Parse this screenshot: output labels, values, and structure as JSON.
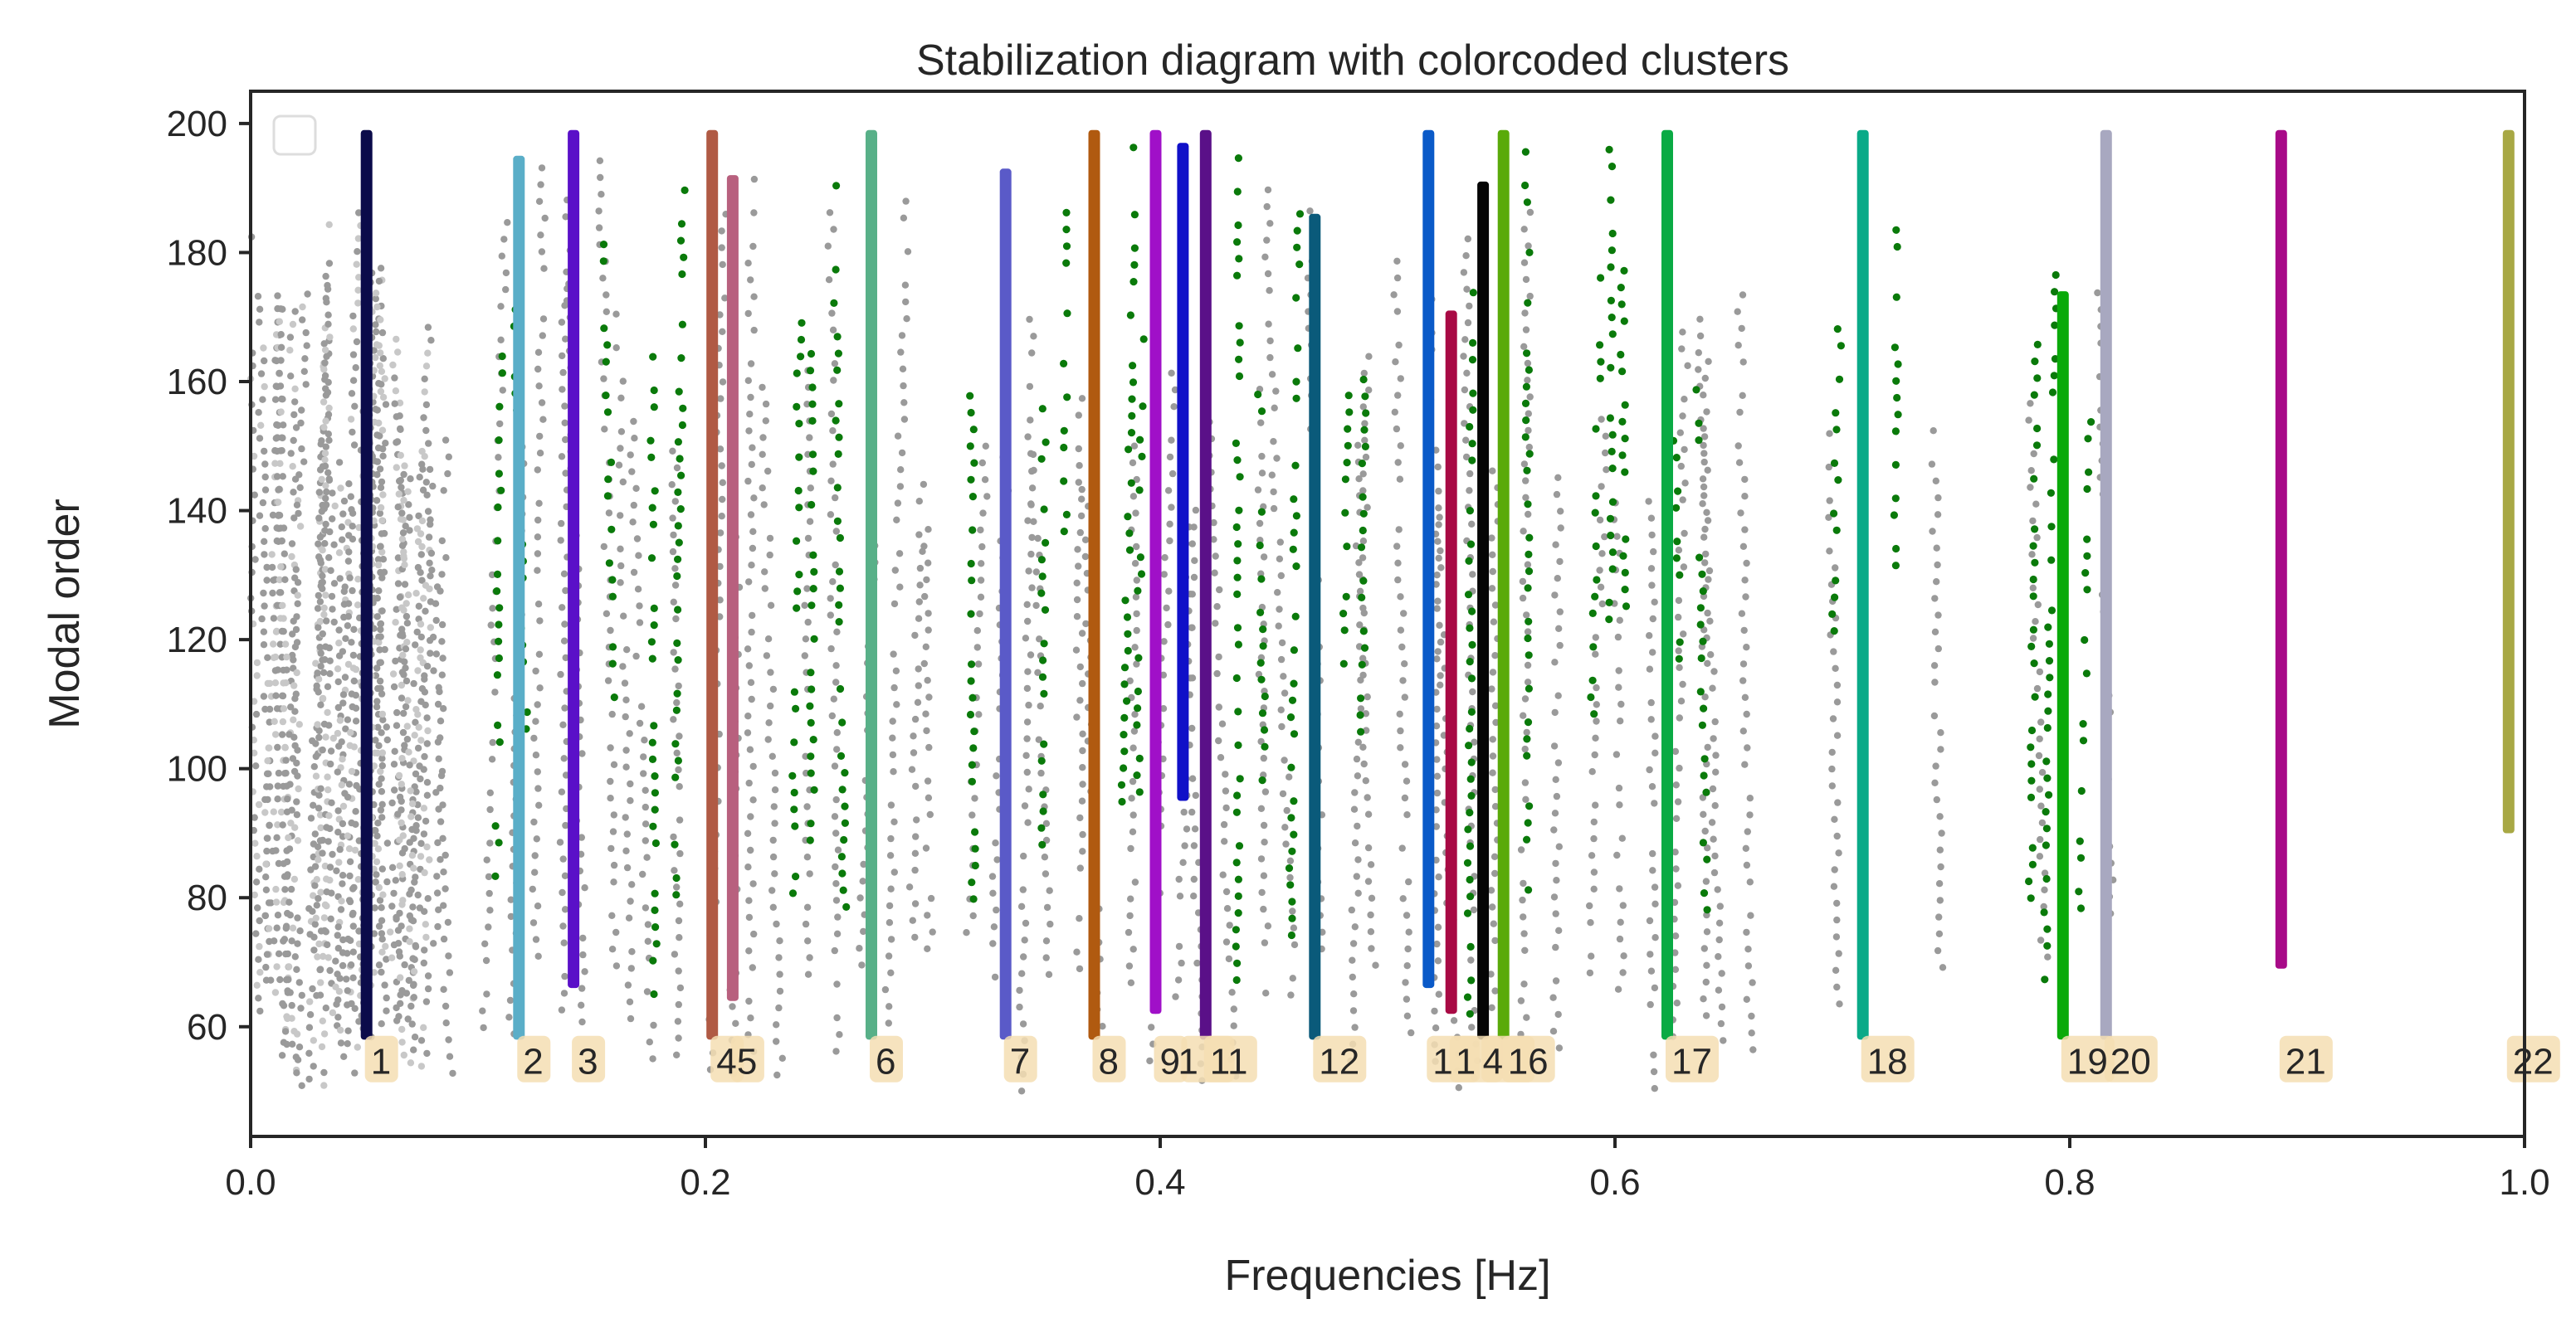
{
  "chart_data": {
    "type": "scatter",
    "title": "Stabilization diagram with colorcoded clusters",
    "xlabel": "Frequencies [Hz]",
    "ylabel": "Modal order",
    "xlim": [
      0.0,
      1.0
    ],
    "ylim": [
      43,
      205
    ],
    "x_ticks": [
      0.0,
      0.2,
      0.4,
      0.6,
      0.8,
      1.0
    ],
    "x_tick_labels": [
      "0.0",
      "0.2",
      "0.4",
      "0.6",
      "0.8",
      "1.0"
    ],
    "y_ticks": [
      60,
      80,
      100,
      120,
      140,
      160,
      180,
      200
    ],
    "y_tick_labels": [
      "60",
      "80",
      "100",
      "120",
      "140",
      "160",
      "180",
      "200"
    ],
    "grid": false,
    "legend": "top-left (empty)",
    "cluster_label_text_color": "#262626",
    "cluster_label_box_color": "#f5deb3",
    "background_colors": {
      "unstable": "#9a9a9a",
      "stable": "#0a7a0a"
    },
    "clusters": [
      {
        "label": "1",
        "freq": 0.051,
        "order_min": 58,
        "order_max": 199,
        "color": "#0b0b4a"
      },
      {
        "label": "2",
        "freq": 0.118,
        "order_min": 58,
        "order_max": 195,
        "color": "#5aaec8"
      },
      {
        "label": "3",
        "freq": 0.142,
        "order_min": 66,
        "order_max": 199,
        "color": "#5a10c8"
      },
      {
        "label": "4",
        "freq": 0.203,
        "order_min": 58,
        "order_max": 199,
        "color": "#b05a44"
      },
      {
        "label": "5",
        "freq": 0.212,
        "order_min": 64,
        "order_max": 192,
        "color": "#b8607e"
      },
      {
        "label": "6",
        "freq": 0.273,
        "order_min": 58,
        "order_max": 199,
        "color": "#58b088"
      },
      {
        "label": "7",
        "freq": 0.332,
        "order_min": 58,
        "order_max": 193,
        "color": "#5a5ac8"
      },
      {
        "label": "8",
        "freq": 0.371,
        "order_min": 58,
        "order_max": 199,
        "color": "#b05a10"
      },
      {
        "label": "9",
        "freq": 0.398,
        "order_min": 62,
        "order_max": 199,
        "color": "#a010c8"
      },
      {
        "label": "10",
        "freq": 0.41,
        "order_min": 95,
        "order_max": 197,
        "color": "#1010c8"
      },
      {
        "label": "11",
        "freq": 0.42,
        "order_min": 58,
        "order_max": 199,
        "color": "#5a1088"
      },
      {
        "label": "12",
        "freq": 0.468,
        "order_min": 58,
        "order_max": 186,
        "color": "#0a5a7a"
      },
      {
        "label": "13",
        "freq": 0.518,
        "order_min": 66,
        "order_max": 199,
        "color": "#0a5ac8"
      },
      {
        "label": "14",
        "freq": 0.528,
        "order_min": 62,
        "order_max": 171,
        "color": "#a80a44"
      },
      {
        "label": "15",
        "freq": 0.542,
        "order_min": 58,
        "order_max": 191,
        "color": "#050505"
      },
      {
        "label": "16",
        "freq": 0.551,
        "order_min": 58,
        "order_max": 199,
        "color": "#5aaa0a"
      },
      {
        "label": "17",
        "freq": 0.623,
        "order_min": 58,
        "order_max": 199,
        "color": "#0aaa44"
      },
      {
        "label": "18",
        "freq": 0.709,
        "order_min": 58,
        "order_max": 199,
        "color": "#0aaa88"
      },
      {
        "label": "19",
        "freq": 0.797,
        "order_min": 58,
        "order_max": 174,
        "color": "#0aaa0a"
      },
      {
        "label": "20",
        "freq": 0.816,
        "order_min": 58,
        "order_max": 199,
        "color": "#a8a8c0"
      },
      {
        "label": "21",
        "freq": 0.893,
        "order_min": 69,
        "order_max": 199,
        "color": "#a80a88"
      },
      {
        "label": "22",
        "freq": 0.993,
        "order_min": 90,
        "order_max": 199,
        "color": "#a8a844"
      }
    ],
    "cluster_label_display": [
      "1",
      "2",
      "3",
      "4",
      "5",
      "6",
      "7",
      "8",
      "9",
      "1",
      "11",
      "12",
      "1",
      "1",
      "4",
      "16",
      "17",
      "18",
      "1",
      "9",
      "20",
      "21",
      "22"
    ],
    "cluster_label_order": 55,
    "stable_columns": [
      0.108,
      0.124,
      0.163,
      0.178,
      0.186,
      0.238,
      0.247,
      0.262,
      0.318,
      0.348,
      0.358,
      0.382,
      0.389,
      0.434,
      0.447,
      0.457,
      0.478,
      0.488,
      0.536,
      0.562,
      0.587,
      0.598,
      0.606,
      0.631,
      0.641,
      0.692,
      0.721,
      0.782,
      0.789,
      0.803
    ]
  }
}
